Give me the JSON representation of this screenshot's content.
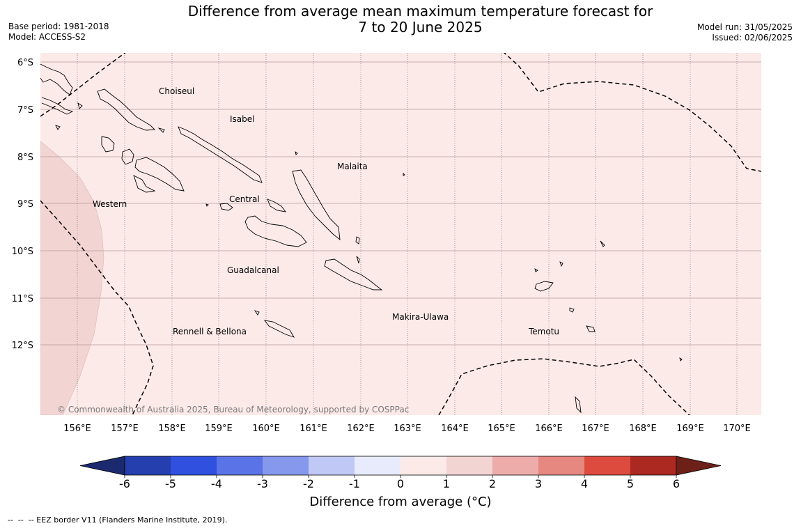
{
  "title": {
    "line1": "Difference from average mean maximum temperature forecast for",
    "line2": "7 to 20 June 2025"
  },
  "meta": {
    "base_period": "Base period: 1981-2018",
    "model": "Model: ACCESS-S2",
    "model_run": "Model run: 31/05/2025",
    "issued": "Issued: 02/06/2025"
  },
  "map": {
    "region": "Solomon Islands",
    "lat_labels": [
      "6°S",
      "7°S",
      "8°S",
      "9°S",
      "10°S",
      "11°S",
      "12°S"
    ],
    "lon_labels": [
      "156°E",
      "157°E",
      "158°E",
      "159°E",
      "160°E",
      "161°E",
      "162°E",
      "163°E",
      "164°E",
      "165°E",
      "166°E",
      "167°E",
      "168°E",
      "169°E",
      "170°E"
    ],
    "region_labels": [
      "Choiseul",
      "Isabel",
      "Malaita",
      "Western",
      "Central",
      "Guadalcanal",
      "Makira-Ulawa",
      "Rennell & Bellona",
      "Temotu"
    ],
    "copyright": "© Commonwealth of Australia 2025, Bureau of Meteorology, supported by COSPPac",
    "background_color": "#fbeae8",
    "warm_area_color": "#f2d4d3"
  },
  "colorbar": {
    "ticks": [
      "-6",
      "-5",
      "-4",
      "-3",
      "-2",
      "-1",
      "0",
      "1",
      "2",
      "3",
      "4",
      "5",
      "6"
    ],
    "colors": [
      "#253fae",
      "#3050e0",
      "#5a73e6",
      "#8598ec",
      "#c0c8f5",
      "#e8ebfb",
      "#fbeae8",
      "#f2d4d3",
      "#edabaa",
      "#e68780",
      "#dc4b3e",
      "#ab2920"
    ],
    "low_extend_color": "#1b2a6e",
    "high_extend_color": "#6d2018",
    "label": "Difference from average (°C)"
  },
  "footer_note": "--  --  -- EEZ border V11 (Flanders Marine Institute, 2019)."
}
